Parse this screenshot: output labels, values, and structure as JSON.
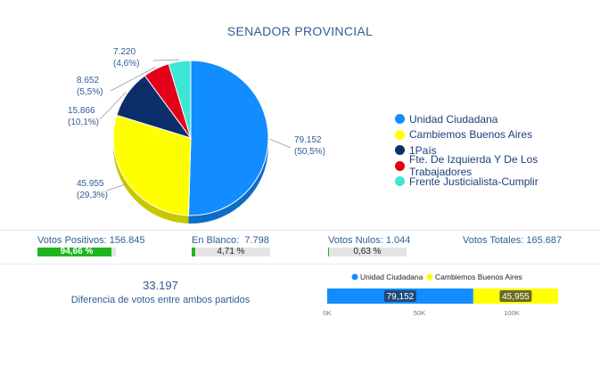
{
  "title": "SENADOR PROVINCIAL",
  "chart_data": [
    {
      "type": "pie",
      "slices": [
        {
          "name": "Unidad Ciudadana",
          "value": 79152,
          "value_label": "79.152",
          "pct_label": "(50,5%)",
          "color": "#118dff"
        },
        {
          "name": "Cambiemos Buenos Aires",
          "value": 45955,
          "value_label": "45.955",
          "pct_label": "(29,3%)",
          "color": "#ffff00"
        },
        {
          "name": "1País",
          "value": 15866,
          "value_label": "15.866",
          "pct_label": "(10,1%)",
          "color": "#0b2e6b"
        },
        {
          "name": "Fte. De Izquierda Y De Los Trabajadores",
          "value": 8652,
          "value_label": "8.652",
          "pct_label": "(5,5%)",
          "color": "#e3001b"
        },
        {
          "name": "Frente Justicialista-Cumplir",
          "value": 7220,
          "value_label": "7.220",
          "pct_label": "(4,6%)",
          "color": "#3ee6d6"
        }
      ],
      "legend_position": "right"
    },
    {
      "type": "bar",
      "orientation": "horizontal",
      "stacked": true,
      "series": [
        {
          "name": "Unidad Ciudadana",
          "value": 79152,
          "label": "79,152",
          "color": "#118dff"
        },
        {
          "name": "Cambiemos Buenos Aires",
          "value": 45955,
          "label": "45,955",
          "color": "#ffff00"
        }
      ],
      "xlim": [
        0,
        125107
      ],
      "x_ticks": [
        {
          "value": 0,
          "label": "0K"
        },
        {
          "value": 50000,
          "label": "50K"
        },
        {
          "value": 100000,
          "label": "100K"
        }
      ],
      "legend_position": "top"
    }
  ],
  "stats": {
    "positivos": {
      "label": "Votos Positivos:",
      "value": "156.845",
      "pct": 94.66,
      "pct_label": "94,66 %"
    },
    "blanco": {
      "label": "En Blanco:",
      "value": "7.798",
      "pct": 4.71,
      "pct_label": "4,71 %"
    },
    "nulos": {
      "label": "Votos Nulos:",
      "value": "1.044",
      "pct": 0.63,
      "pct_label": "0,63 %"
    },
    "totales": {
      "label": "Votos Totales:",
      "value": "165.687"
    }
  },
  "diferencia": {
    "value": "33.197",
    "label": "Diferencia de votos entre ambos partidos"
  }
}
